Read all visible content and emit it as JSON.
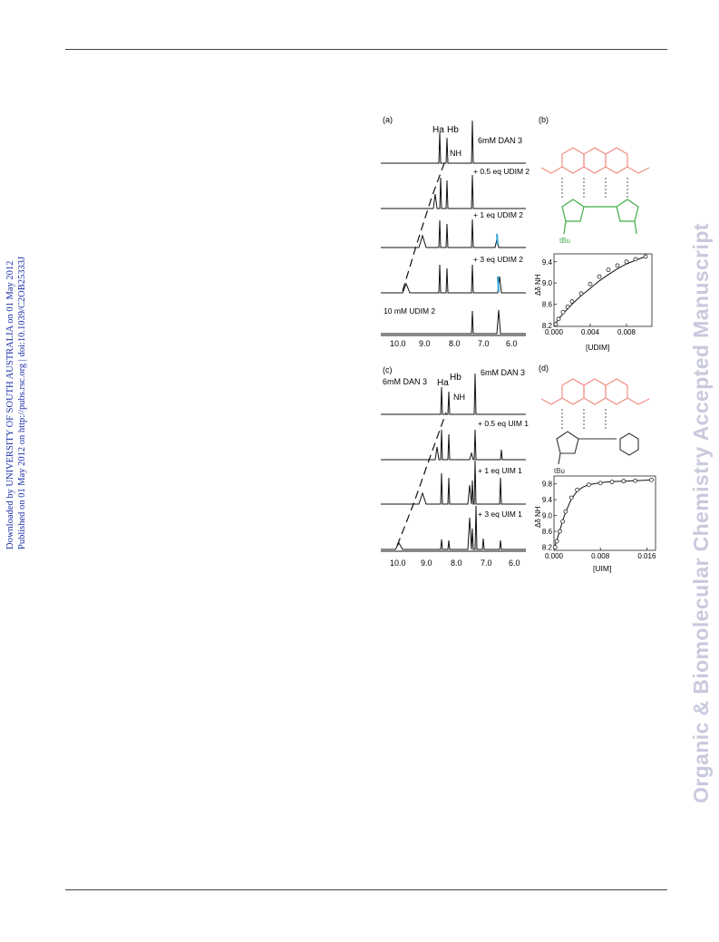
{
  "sidebar_left": {
    "line1": "Downloaded by UNIVERSITY OF SOUTH AUSTRALIA on 01 May 2012",
    "line2": "Published on 01 May 2012 on http://pubs.rsc.org | doi:10.1039/C2OB25333J"
  },
  "watermark": "Organic & Biomolecular Chemistry Accepted Manuscript",
  "figure": {
    "panel_a": {
      "label": "(a)",
      "peak_ha": "Ha",
      "peak_hb": "Hb",
      "peak_nh": "NH",
      "traces": [
        "6mM DAN 3",
        "+ 0.5 eq UDIM 2",
        "+ 1 eq UDIM 2",
        "+ 3 eq UDIM 2",
        "10 mM UDIM 2"
      ],
      "axis_ticks": [
        "10.0",
        "9.0",
        "8.0",
        "7.0",
        "6.0"
      ]
    },
    "panel_b": {
      "label": "(b)",
      "tbu": "tBu",
      "chart_data": {
        "type": "scatter",
        "xlabel": "[UDIM]",
        "ylabel": "Δδ NH",
        "x_ticks": [
          "0.000",
          "0.004",
          "0.008"
        ],
        "y_ticks": [
          "8.2",
          "8.6",
          "9.0",
          "9.4"
        ],
        "xlim": [
          0,
          0.0108
        ],
        "ylim": [
          8.18,
          9.55
        ],
        "points": [
          [
            0.0002,
            8.22
          ],
          [
            0.0005,
            8.32
          ],
          [
            0.001,
            8.45
          ],
          [
            0.0015,
            8.55
          ],
          [
            0.002,
            8.65
          ],
          [
            0.003,
            8.8
          ],
          [
            0.004,
            8.98
          ],
          [
            0.005,
            9.12
          ],
          [
            0.006,
            9.25
          ],
          [
            0.007,
            9.33
          ],
          [
            0.008,
            9.4
          ],
          [
            0.009,
            9.45
          ],
          [
            0.0101,
            9.5
          ]
        ],
        "fit": [
          [
            0,
            8.2
          ],
          [
            0.001,
            8.42
          ],
          [
            0.002,
            8.6
          ],
          [
            0.003,
            8.76
          ],
          [
            0.004,
            8.9
          ],
          [
            0.005,
            9.04
          ],
          [
            0.006,
            9.16
          ],
          [
            0.007,
            9.27
          ],
          [
            0.008,
            9.36
          ],
          [
            0.009,
            9.43
          ],
          [
            0.0101,
            9.5
          ]
        ]
      }
    },
    "panel_c": {
      "label": "(c)",
      "left_label": "6mM DAN 3",
      "peak_ha": "Ha",
      "peak_hb": "Hb",
      "peak_nh": "NH",
      "traces": [
        "6mM DAN 3",
        "+ 0.5 eq UIM 1",
        "+ 1 eq UIM 1",
        "+ 3 eq UIM 1"
      ],
      "axis_ticks": [
        "10.0",
        "9.0",
        "8.0",
        "7.0",
        "6.0"
      ]
    },
    "panel_d": {
      "label": "(d)",
      "tbu": "tBu",
      "chart_data": {
        "type": "scatter",
        "xlabel": "[UIM]",
        "ylabel": "Δδ NH",
        "x_ticks": [
          "0.000",
          "0.008",
          "0.016"
        ],
        "y_ticks": [
          "8.2",
          "8.6",
          "9.0",
          "9.4",
          "9.8"
        ],
        "xlim": [
          0,
          0.0175
        ],
        "ylim": [
          8.12,
          10.0
        ],
        "points": [
          [
            0.0002,
            8.2
          ],
          [
            0.0005,
            8.35
          ],
          [
            0.001,
            8.6
          ],
          [
            0.0015,
            8.85
          ],
          [
            0.002,
            9.1
          ],
          [
            0.003,
            9.45
          ],
          [
            0.004,
            9.65
          ],
          [
            0.006,
            9.78
          ],
          [
            0.008,
            9.82
          ],
          [
            0.01,
            9.85
          ],
          [
            0.012,
            9.87
          ],
          [
            0.014,
            9.88
          ],
          [
            0.0168,
            9.9
          ]
        ],
        "fit": [
          [
            0,
            8.15
          ],
          [
            0.0005,
            8.38
          ],
          [
            0.001,
            8.62
          ],
          [
            0.0015,
            8.87
          ],
          [
            0.002,
            9.08
          ],
          [
            0.003,
            9.42
          ],
          [
            0.004,
            9.62
          ],
          [
            0.005,
            9.72
          ],
          [
            0.006,
            9.78
          ],
          [
            0.008,
            9.83
          ],
          [
            0.01,
            9.86
          ],
          [
            0.012,
            9.87
          ],
          [
            0.014,
            9.88
          ],
          [
            0.0168,
            9.9
          ]
        ]
      }
    }
  }
}
